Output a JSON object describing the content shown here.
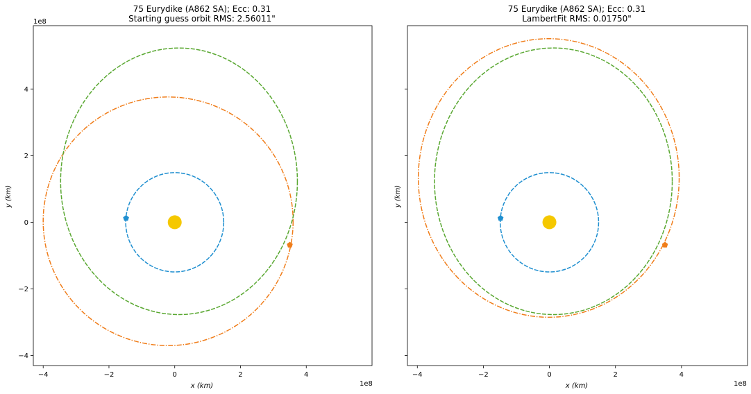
{
  "figure": {
    "panels": [
      {
        "title_line1": "75 Eurydike (A862 SA); Ecc: 0.31",
        "title_line2": "Starting guess orbit RMS: 2.56011\""
      },
      {
        "title_line1": "75 Eurydike (A862 SA); Ecc: 0.31",
        "title_line2": "LambertFit RMS: 0.01750\""
      }
    ],
    "xlabel": "x (km)",
    "ylabel": "y (km)",
    "x_offset_label": "1e8",
    "y_offset_label": "1e8"
  },
  "chart_data": [
    {
      "type": "scatter",
      "title": "75 Eurydike (A862 SA); Ecc: 0.31 / Starting guess orbit RMS: 2.56011\"",
      "xlabel": "x (km)",
      "ylabel": "y (km)",
      "xlim": [
        -4.3,
        6.0
      ],
      "ylim": [
        -4.3,
        5.9
      ],
      "x_ticks": [
        -4,
        -2,
        0,
        2,
        4
      ],
      "y_ticks": [
        -4,
        -2,
        0,
        2,
        4
      ],
      "x_tick_labels": [
        "−4",
        "−2",
        "0",
        "2",
        "4"
      ],
      "y_tick_labels": [
        "−4",
        "−2",
        "0",
        "2",
        "4"
      ],
      "axis_scale": "1e8",
      "grid": false,
      "orbits": [
        {
          "color": "#1f8fd0",
          "dash": "dashed",
          "cx": 0.0,
          "cy": 0.0,
          "rx": 1.49,
          "ry": 1.49
        },
        {
          "color": "#f07d1a",
          "dash": "dashdot",
          "cx": -0.2,
          "cy": 0.03,
          "rx": 3.8,
          "ry": 3.73
        },
        {
          "color": "#5aa832",
          "dash": "dashed",
          "cx": 0.13,
          "cy": 1.23,
          "rx": 3.6,
          "ry": 4.0
        }
      ],
      "markers": [
        {
          "shape": "sun",
          "color": "#f5c800",
          "x": 0.0,
          "y": 0.0
        },
        {
          "shape": "pentagon",
          "color": "#1f8fd0",
          "x": -1.48,
          "y": 0.12
        },
        {
          "shape": "pentagon",
          "color": "#f07d1a",
          "x": 3.5,
          "y": -0.68
        }
      ]
    },
    {
      "type": "scatter",
      "title": "75 Eurydike (A862 SA); Ecc: 0.31 / LambertFit RMS: 0.01750\"",
      "xlabel": "x (km)",
      "ylabel": "y (km)",
      "xlim": [
        -4.3,
        6.0
      ],
      "ylim": [
        -4.3,
        5.9
      ],
      "x_ticks": [
        -4,
        -2,
        0,
        2,
        4
      ],
      "y_ticks": [
        -4,
        -2,
        0,
        2,
        4
      ],
      "x_tick_labels": [
        "−4",
        "−2",
        "0",
        "2",
        "4"
      ],
      "y_tick_labels": [],
      "axis_scale": "1e8",
      "grid": false,
      "orbits": [
        {
          "color": "#1f8fd0",
          "dash": "dashed",
          "cx": 0.0,
          "cy": 0.0,
          "rx": 1.49,
          "ry": 1.49
        },
        {
          "color": "#f07d1a",
          "dash": "dashdot",
          "cx": -0.02,
          "cy": 1.33,
          "rx": 3.95,
          "ry": 4.18
        },
        {
          "color": "#5aa832",
          "dash": "dashed",
          "cx": 0.12,
          "cy": 1.23,
          "rx": 3.6,
          "ry": 4.0
        }
      ],
      "markers": [
        {
          "shape": "sun",
          "color": "#f5c800",
          "x": 0.0,
          "y": 0.0
        },
        {
          "shape": "pentagon",
          "color": "#1f8fd0",
          "x": -1.48,
          "y": 0.12
        },
        {
          "shape": "pentagon",
          "color": "#f07d1a",
          "x": 3.5,
          "y": -0.68
        }
      ]
    }
  ]
}
